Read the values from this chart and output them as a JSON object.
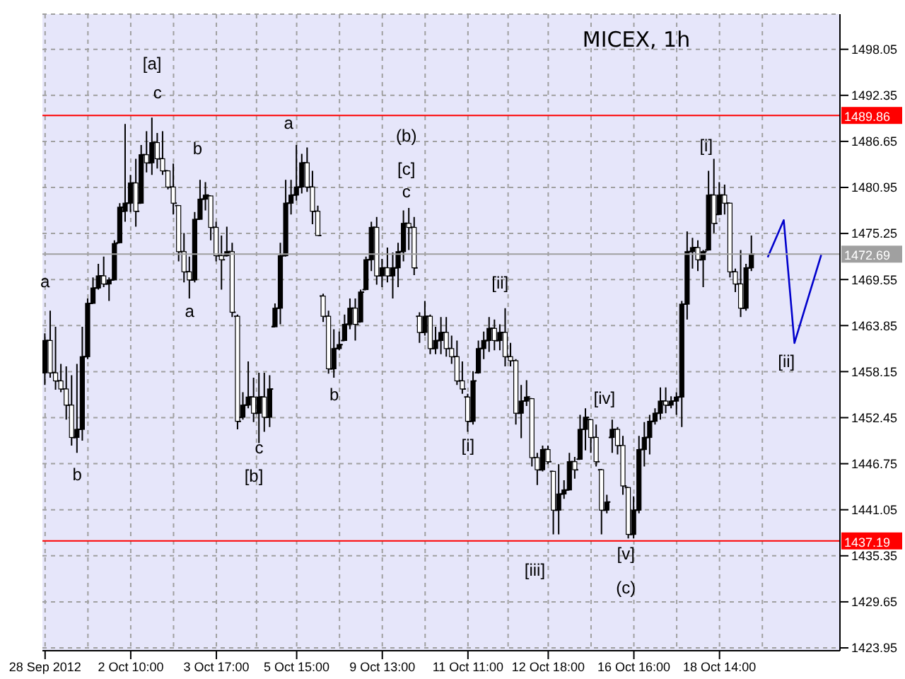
{
  "chart_data": {
    "type": "candlestick",
    "title": "MICEX, 1h",
    "color": "#000000",
    "categories": [
      "28 Sep 2012",
      null,
      null,
      null,
      null,
      null,
      null,
      null,
      null,
      null,
      null,
      null,
      null,
      null,
      null,
      null,
      "2 Oct 10:00",
      null,
      null,
      null,
      null,
      null,
      null,
      null,
      null,
      null,
      null,
      null,
      null,
      null,
      null,
      null,
      "3 Oct 17:00",
      null,
      null,
      null,
      null,
      null,
      null,
      null,
      null,
      null,
      null,
      null,
      null,
      null,
      null,
      "5 Oct 15:00",
      null,
      null,
      null,
      null,
      null,
      null,
      null,
      null,
      null,
      null,
      null,
      null,
      null,
      null,
      null,
      "9 Oct 13:00",
      null,
      null,
      null,
      null,
      null,
      null,
      null,
      null,
      null,
      null,
      null,
      null,
      null,
      null,
      null,
      "11 Oct 11:00",
      null,
      null,
      null,
      null,
      null,
      null,
      null,
      null,
      null,
      null,
      null,
      null,
      null,
      null,
      "12 Oct 18:00",
      null,
      null,
      null,
      null,
      null,
      null,
      null,
      null,
      null,
      null,
      null,
      null,
      null,
      null,
      null,
      "16 Oct 16:00",
      null,
      null,
      null,
      null,
      null,
      null,
      null,
      null,
      null,
      null,
      null,
      null,
      null,
      null,
      null,
      "18 Oct 14:00",
      null,
      null,
      null,
      null,
      null,
      null,
      null,
      null,
      null,
      null,
      null,
      null,
      null,
      null,
      null,
      null,
      null,
      null,
      null,
      null,
      null,
      null
    ],
    "ohlc": [
      [
        1458,
        1462.9,
        1456.5,
        1462
      ],
      [
        1462,
        1465.7,
        1457.4,
        1458
      ],
      [
        1458,
        1463.7,
        1455.9,
        1457
      ],
      [
        1457,
        1459.1,
        1455.6,
        1456
      ],
      [
        1456,
        1458.8,
        1452.2,
        1454
      ],
      [
        1454,
        1457.7,
        1449,
        1450
      ],
      [
        1450,
        1459.1,
        1448.1,
        1451
      ],
      [
        1451,
        1463.7,
        1449.6,
        1460
      ],
      [
        1460,
        1467.2,
        1459.7,
        1466.6
      ],
      [
        1466.6,
        1469.8,
        1466.6,
        1468.5
      ],
      [
        1468.5,
        1471.5,
        1468.3,
        1470
      ],
      [
        1470,
        1472.4,
        1468.6,
        1469
      ],
      [
        1469,
        1469.8,
        1466.9,
        1469.5
      ],
      [
        1469.5,
        1474.4,
        1469.5,
        1474
      ],
      [
        1474.1,
        1479,
        1474.1,
        1478.5
      ],
      [
        1478,
        1488.8,
        1476.7,
        1479
      ],
      [
        1479,
        1482.5,
        1477.9,
        1481.5
      ],
      [
        1481.5,
        1484.5,
        1476.1,
        1478
      ],
      [
        1479,
        1486.2,
        1479,
        1485
      ],
      [
        1485,
        1487.9,
        1482.8,
        1484
      ],
      [
        1484,
        1489.6,
        1482.5,
        1486.5
      ],
      [
        1486.5,
        1487.7,
        1483.3,
        1484.5
      ],
      [
        1484.5,
        1487.9,
        1482.5,
        1483
      ],
      [
        1483,
        1483,
        1480.7,
        1481
      ],
      [
        1481,
        1483.9,
        1477.6,
        1479
      ],
      [
        1478.7,
        1478.7,
        1471.8,
        1473
      ],
      [
        1473,
        1475.3,
        1469.2,
        1470.5
      ],
      [
        1470.5,
        1472.4,
        1467.2,
        1469.5
      ],
      [
        1469.5,
        1477.9,
        1469.2,
        1477
      ],
      [
        1477,
        1481.9,
        1477,
        1479.5
      ],
      [
        1479.5,
        1481.6,
        1478.1,
        1480
      ],
      [
        1479.9,
        1479.9,
        1474.4,
        1476
      ],
      [
        1476,
        1476.7,
        1471.8,
        1472.5
      ],
      [
        1472.5,
        1475,
        1468.3,
        1472
      ],
      [
        1472.5,
        1476.1,
        1472.4,
        1473
      ],
      [
        1473,
        1474.1,
        1464.9,
        1465.5
      ],
      [
        1465,
        1465.2,
        1451,
        1452
      ],
      [
        1452.5,
        1455.6,
        1452.2,
        1454
      ],
      [
        1454,
        1459.4,
        1453.6,
        1455
      ],
      [
        1455,
        1457.4,
        1451.9,
        1453
      ],
      [
        1453,
        1458,
        1449.3,
        1455
      ],
      [
        1455,
        1458,
        1450.7,
        1452.5
      ],
      [
        1452.5,
        1457.7,
        1451.3,
        1456
      ],
      [
        1463.7,
        1466.6,
        1463.7,
        1466
      ],
      [
        1466,
        1474.1,
        1464,
        1472.5
      ],
      [
        1472.5,
        1481.9,
        1472.4,
        1479
      ],
      [
        1479,
        1481.9,
        1477.6,
        1480
      ],
      [
        1480,
        1486.2,
        1479.3,
        1481
      ],
      [
        1481,
        1485.1,
        1480.2,
        1484
      ],
      [
        1484,
        1485.9,
        1480.4,
        1481
      ],
      [
        1481,
        1483,
        1476.4,
        1478
      ],
      [
        1478,
        1478.7,
        1475,
        1475
      ],
      [
        1467.5,
        1467.8,
        1464.3,
        1465
      ],
      [
        1465,
        1465.7,
        1457.9,
        1458.5
      ],
      [
        1458.5,
        1463.4,
        1457.4,
        1461
      ],
      [
        1461,
        1463.1,
        1460.8,
        1461.5
      ],
      [
        1462,
        1465.2,
        1462,
        1464
      ],
      [
        1464,
        1467.2,
        1463.4,
        1466
      ],
      [
        1466,
        1467.2,
        1462,
        1464
      ],
      [
        1464.3,
        1468.3,
        1464.3,
        1468
      ],
      [
        1468.3,
        1472.4,
        1468.3,
        1472
      ],
      [
        1472,
        1476.7,
        1470.6,
        1476
      ],
      [
        1476,
        1477.3,
        1468.9,
        1470
      ],
      [
        1470,
        1472.1,
        1468.6,
        1471
      ],
      [
        1471,
        1473.5,
        1469.2,
        1470
      ],
      [
        1470,
        1472.9,
        1467.2,
        1471
      ],
      [
        1471,
        1474.1,
        1468.6,
        1473
      ],
      [
        1473,
        1478.1,
        1471.8,
        1476.5
      ],
      [
        1476.5,
        1478.4,
        1473.2,
        1476
      ],
      [
        1476,
        1477.3,
        1470.1,
        1471
      ],
      [
        1465,
        1465.5,
        1461.7,
        1463
      ],
      [
        1463,
        1466.9,
        1462.6,
        1465
      ],
      [
        1465,
        1465.2,
        1460.3,
        1461
      ],
      [
        1461,
        1463.7,
        1460.3,
        1462
      ],
      [
        1462,
        1464.9,
        1460.3,
        1463
      ],
      [
        1463,
        1464.9,
        1460,
        1461
      ],
      [
        1461,
        1462.6,
        1459.1,
        1460
      ],
      [
        1460,
        1462,
        1456.5,
        1457
      ],
      [
        1457,
        1459.4,
        1455.4,
        1456
      ],
      [
        1455,
        1455.4,
        1450.7,
        1452
      ],
      [
        1452,
        1458.2,
        1451.6,
        1457
      ],
      [
        1458,
        1462,
        1457.9,
        1461
      ],
      [
        1461,
        1463.1,
        1459.7,
        1462
      ],
      [
        1462,
        1464.9,
        1460.6,
        1463.5
      ],
      [
        1463.5,
        1464.6,
        1460.8,
        1462
      ],
      [
        1462,
        1464,
        1460.8,
        1463
      ],
      [
        1463,
        1466,
        1458.8,
        1460
      ],
      [
        1460,
        1461.7,
        1458.8,
        1459.5
      ],
      [
        1459.5,
        1459.7,
        1451.6,
        1453
      ],
      [
        1453,
        1456.5,
        1449.9,
        1454.5
      ],
      [
        1454.5,
        1457.1,
        1453.9,
        1455
      ],
      [
        1454.8,
        1454.8,
        1446.4,
        1447.5
      ],
      [
        1447.5,
        1448.1,
        1444.1,
        1446
      ],
      [
        1446,
        1449,
        1445.8,
        1448.5
      ],
      [
        1448.5,
        1449,
        1446.7,
        1447
      ],
      [
        1445.8,
        1445.8,
        1438,
        1441
      ],
      [
        1441,
        1446.7,
        1438,
        1443
      ],
      [
        1443,
        1444.7,
        1442.4,
        1443.5
      ],
      [
        1443.5,
        1448.1,
        1443.5,
        1447
      ],
      [
        1447,
        1447.6,
        1444.9,
        1446
      ],
      [
        1447.3,
        1452.8,
        1447.3,
        1451
      ],
      [
        1451,
        1453.6,
        1448.4,
        1452.5
      ],
      [
        1452.2,
        1452.2,
        1448.1,
        1450
      ],
      [
        1450,
        1451.6,
        1446.4,
        1447
      ],
      [
        1446,
        1446.1,
        1438,
        1441
      ],
      [
        1441,
        1442.9,
        1440.6,
        1442
      ],
      [
        1450,
        1452.2,
        1448.1,
        1451
      ],
      [
        1451,
        1451.3,
        1447.9,
        1449
      ],
      [
        1449,
        1450.2,
        1442.9,
        1444
      ],
      [
        1443.8,
        1443.8,
        1437.5,
        1438
      ],
      [
        1438,
        1442.7,
        1437.5,
        1441
      ],
      [
        1441,
        1450.2,
        1440.6,
        1448.5
      ],
      [
        1448.5,
        1451.9,
        1446.4,
        1450
      ],
      [
        1450,
        1452.8,
        1447.9,
        1452
      ],
      [
        1452,
        1453.6,
        1451.6,
        1453
      ],
      [
        1453,
        1456.2,
        1452.2,
        1454.5
      ],
      [
        1454.5,
        1456.2,
        1453,
        1454
      ],
      [
        1454,
        1455.1,
        1453.6,
        1454.5
      ],
      [
        1454.5,
        1455.6,
        1452.8,
        1455
      ],
      [
        1455,
        1466.9,
        1451.3,
        1466.5
      ],
      [
        1466.5,
        1475.5,
        1464.6,
        1473
      ],
      [
        1473,
        1474.7,
        1470.9,
        1473.5
      ],
      [
        1473.5,
        1474.4,
        1470.6,
        1472
      ],
      [
        1472,
        1473.2,
        1468.6,
        1473
      ],
      [
        1473.2,
        1483,
        1473.2,
        1480
      ],
      [
        1480,
        1484.5,
        1475.3,
        1476.5
      ],
      [
        1477.6,
        1481.6,
        1477.6,
        1480
      ],
      [
        1480,
        1481.3,
        1477.6,
        1479
      ],
      [
        1479,
        1479,
        1469.8,
        1470.5
      ],
      [
        1470.5,
        1470.9,
        1468,
        1469
      ],
      [
        1469,
        1473.2,
        1464.9,
        1466
      ],
      [
        1466,
        1471.5,
        1465.7,
        1471
      ],
      [
        1471,
        1475,
        1470.6,
        1472.69
      ],
      null,
      null,
      null,
      null,
      null,
      null,
      null,
      null,
      null,
      null,
      null,
      null,
      null,
      null,
      null,
      null
    ],
    "series": [
      {
        "type": "line",
        "color": "#0000cc",
        "values": [
          null,
          null,
          null,
          null,
          null,
          null,
          null,
          null,
          null,
          null,
          null,
          null,
          null,
          null,
          null,
          null,
          null,
          null,
          null,
          null,
          null,
          null,
          null,
          null,
          null,
          null,
          null,
          null,
          null,
          null,
          null,
          null,
          null,
          null,
          null,
          null,
          null,
          null,
          null,
          null,
          null,
          null,
          null,
          null,
          null,
          null,
          null,
          null,
          null,
          null,
          null,
          null,
          null,
          null,
          null,
          null,
          null,
          null,
          null,
          null,
          null,
          null,
          null,
          null,
          null,
          null,
          null,
          null,
          null,
          null,
          null,
          null,
          null,
          null,
          null,
          null,
          null,
          null,
          null,
          null,
          null,
          null,
          null,
          null,
          null,
          null,
          null,
          null,
          null,
          null,
          null,
          null,
          null,
          null,
          null,
          null,
          null,
          null,
          null,
          null,
          null,
          null,
          null,
          null,
          null,
          null,
          null,
          null,
          null,
          null,
          null,
          null,
          null,
          null,
          null,
          null,
          null,
          null,
          null,
          null,
          null,
          null,
          null,
          null,
          null,
          null,
          null,
          null,
          null,
          null,
          null,
          null,
          null,
          null,
          null,
          1472.3,
          null,
          null,
          1476.9,
          null,
          1461.7,
          null,
          null,
          null,
          null,
          1472.6,
          null,
          null,
          null
        ]
      }
    ],
    "ylim": [
      1423.6,
      1502.4
    ],
    "yticks": [
      1423.95,
      1429.65,
      1435.35,
      1441.05,
      1446.75,
      1452.45,
      1458.15,
      1463.85,
      1469.55,
      1475.25,
      1480.95,
      1486.65,
      1492.35,
      1498.05
    ],
    "grid": true,
    "ref_lines": [
      {
        "axis": "y",
        "value": 1489.86,
        "label": "1489.86",
        "color": "#ff0000"
      },
      {
        "axis": "y",
        "value": 1472.69,
        "label": "1472.69",
        "color": "#a0a0a0"
      },
      {
        "axis": "y",
        "value": 1437.19,
        "label": "1437.19",
        "color": "#ff0000"
      }
    ],
    "annotations": [
      "a",
      "b",
      "[a]",
      "c",
      "b",
      "a",
      "c",
      "[b]",
      "a",
      "b",
      "(b)",
      "[c]",
      "c",
      "[ii]",
      "[i]",
      "[iii]",
      "[iv]",
      "[v]",
      "(c)",
      "[i]",
      "[ii]"
    ]
  }
}
